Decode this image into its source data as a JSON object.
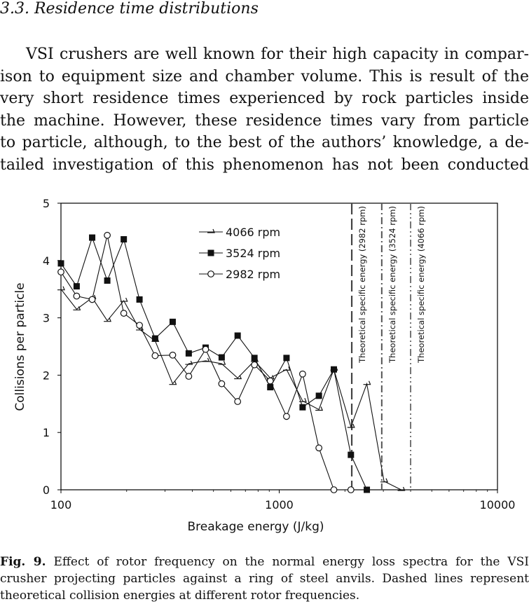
{
  "section_heading": "3.3. Residence time distributions",
  "body_lines": [
    "VSI crushers are well known for their high capacity in compar-",
    "ison to equipment size and chamber volume. This is result of the",
    "very short residence times experienced by rock particles inside",
    "the machine. However, these residence times vary from particle",
    "to particle, although, to the best of the authors’ knowledge, a de-",
    "tailed investigation of this phenomenon has not been conducted"
  ],
  "caption": {
    "label": "Fig. 9.",
    "lines": [
      "Effect of rotor frequency on the normal energy loss spectra for the VSI",
      "crusher projecting particles against a ring of steel anvils. Dashed lines represent",
      "theoretical collision energies at different rotor frequencies."
    ]
  },
  "chart_data": {
    "type": "line",
    "xlabel": "Breakage energy (J/kg)",
    "ylabel": "Collisions per particle",
    "xscale": "log",
    "xlim": [
      100,
      10000
    ],
    "ylim": [
      0,
      5
    ],
    "xticks": [
      "100",
      "1000",
      "10000"
    ],
    "yticks": [
      "0",
      "1",
      "2",
      "3",
      "4",
      "5"
    ],
    "legend_position": "top-left",
    "series": [
      {
        "name": "4066 rpm",
        "marker": "half-arrow",
        "x": [
          100,
          118,
          139,
          163,
          194,
          229,
          270,
          325,
          385,
          460,
          545,
          645,
          770,
          910,
          1080,
          1280,
          1520,
          1780,
          2130,
          2520,
          3020,
          3620
        ],
        "values": [
          3.5,
          3.15,
          3.35,
          2.95,
          3.3,
          2.8,
          2.6,
          1.85,
          2.2,
          2.25,
          2.2,
          1.95,
          2.25,
          1.95,
          2.1,
          1.55,
          1.4,
          2.1,
          1.1,
          1.85,
          0.15,
          0.0
        ]
      },
      {
        "name": "3524 rpm",
        "marker": "filled-square",
        "x": [
          100,
          118,
          139,
          163,
          194,
          229,
          270,
          325,
          385,
          460,
          545,
          645,
          770,
          910,
          1080,
          1280,
          1520,
          1780,
          2130,
          2520
        ],
        "values": [
          3.95,
          3.55,
          4.4,
          3.65,
          4.37,
          3.32,
          2.64,
          2.93,
          2.38,
          2.48,
          2.31,
          2.69,
          2.3,
          1.79,
          2.3,
          1.44,
          1.64,
          2.1,
          0.61,
          0.0
        ]
      },
      {
        "name": "2982 rpm",
        "marker": "open-circle",
        "x": [
          100,
          118,
          139,
          163,
          194,
          229,
          270,
          325,
          385,
          460,
          545,
          645,
          770,
          910,
          1080,
          1280,
          1520,
          1780,
          2130
        ],
        "values": [
          3.8,
          3.38,
          3.32,
          4.44,
          3.08,
          2.87,
          2.34,
          2.35,
          1.98,
          2.45,
          1.85,
          1.54,
          2.18,
          1.9,
          1.28,
          2.02,
          0.73,
          0.0,
          0.0
        ]
      }
    ],
    "vlines": [
      {
        "x": 2150,
        "label": "Theoretical specific energy (2982 rpm)",
        "style": "long-dash"
      },
      {
        "x": 2950,
        "label": "Theoretical specific energy (3524 rpm)",
        "style": "dash-dot"
      },
      {
        "x": 4000,
        "label": "Theoretical specific energy (4066 rpm)",
        "style": "dash-dot-dot"
      }
    ]
  }
}
